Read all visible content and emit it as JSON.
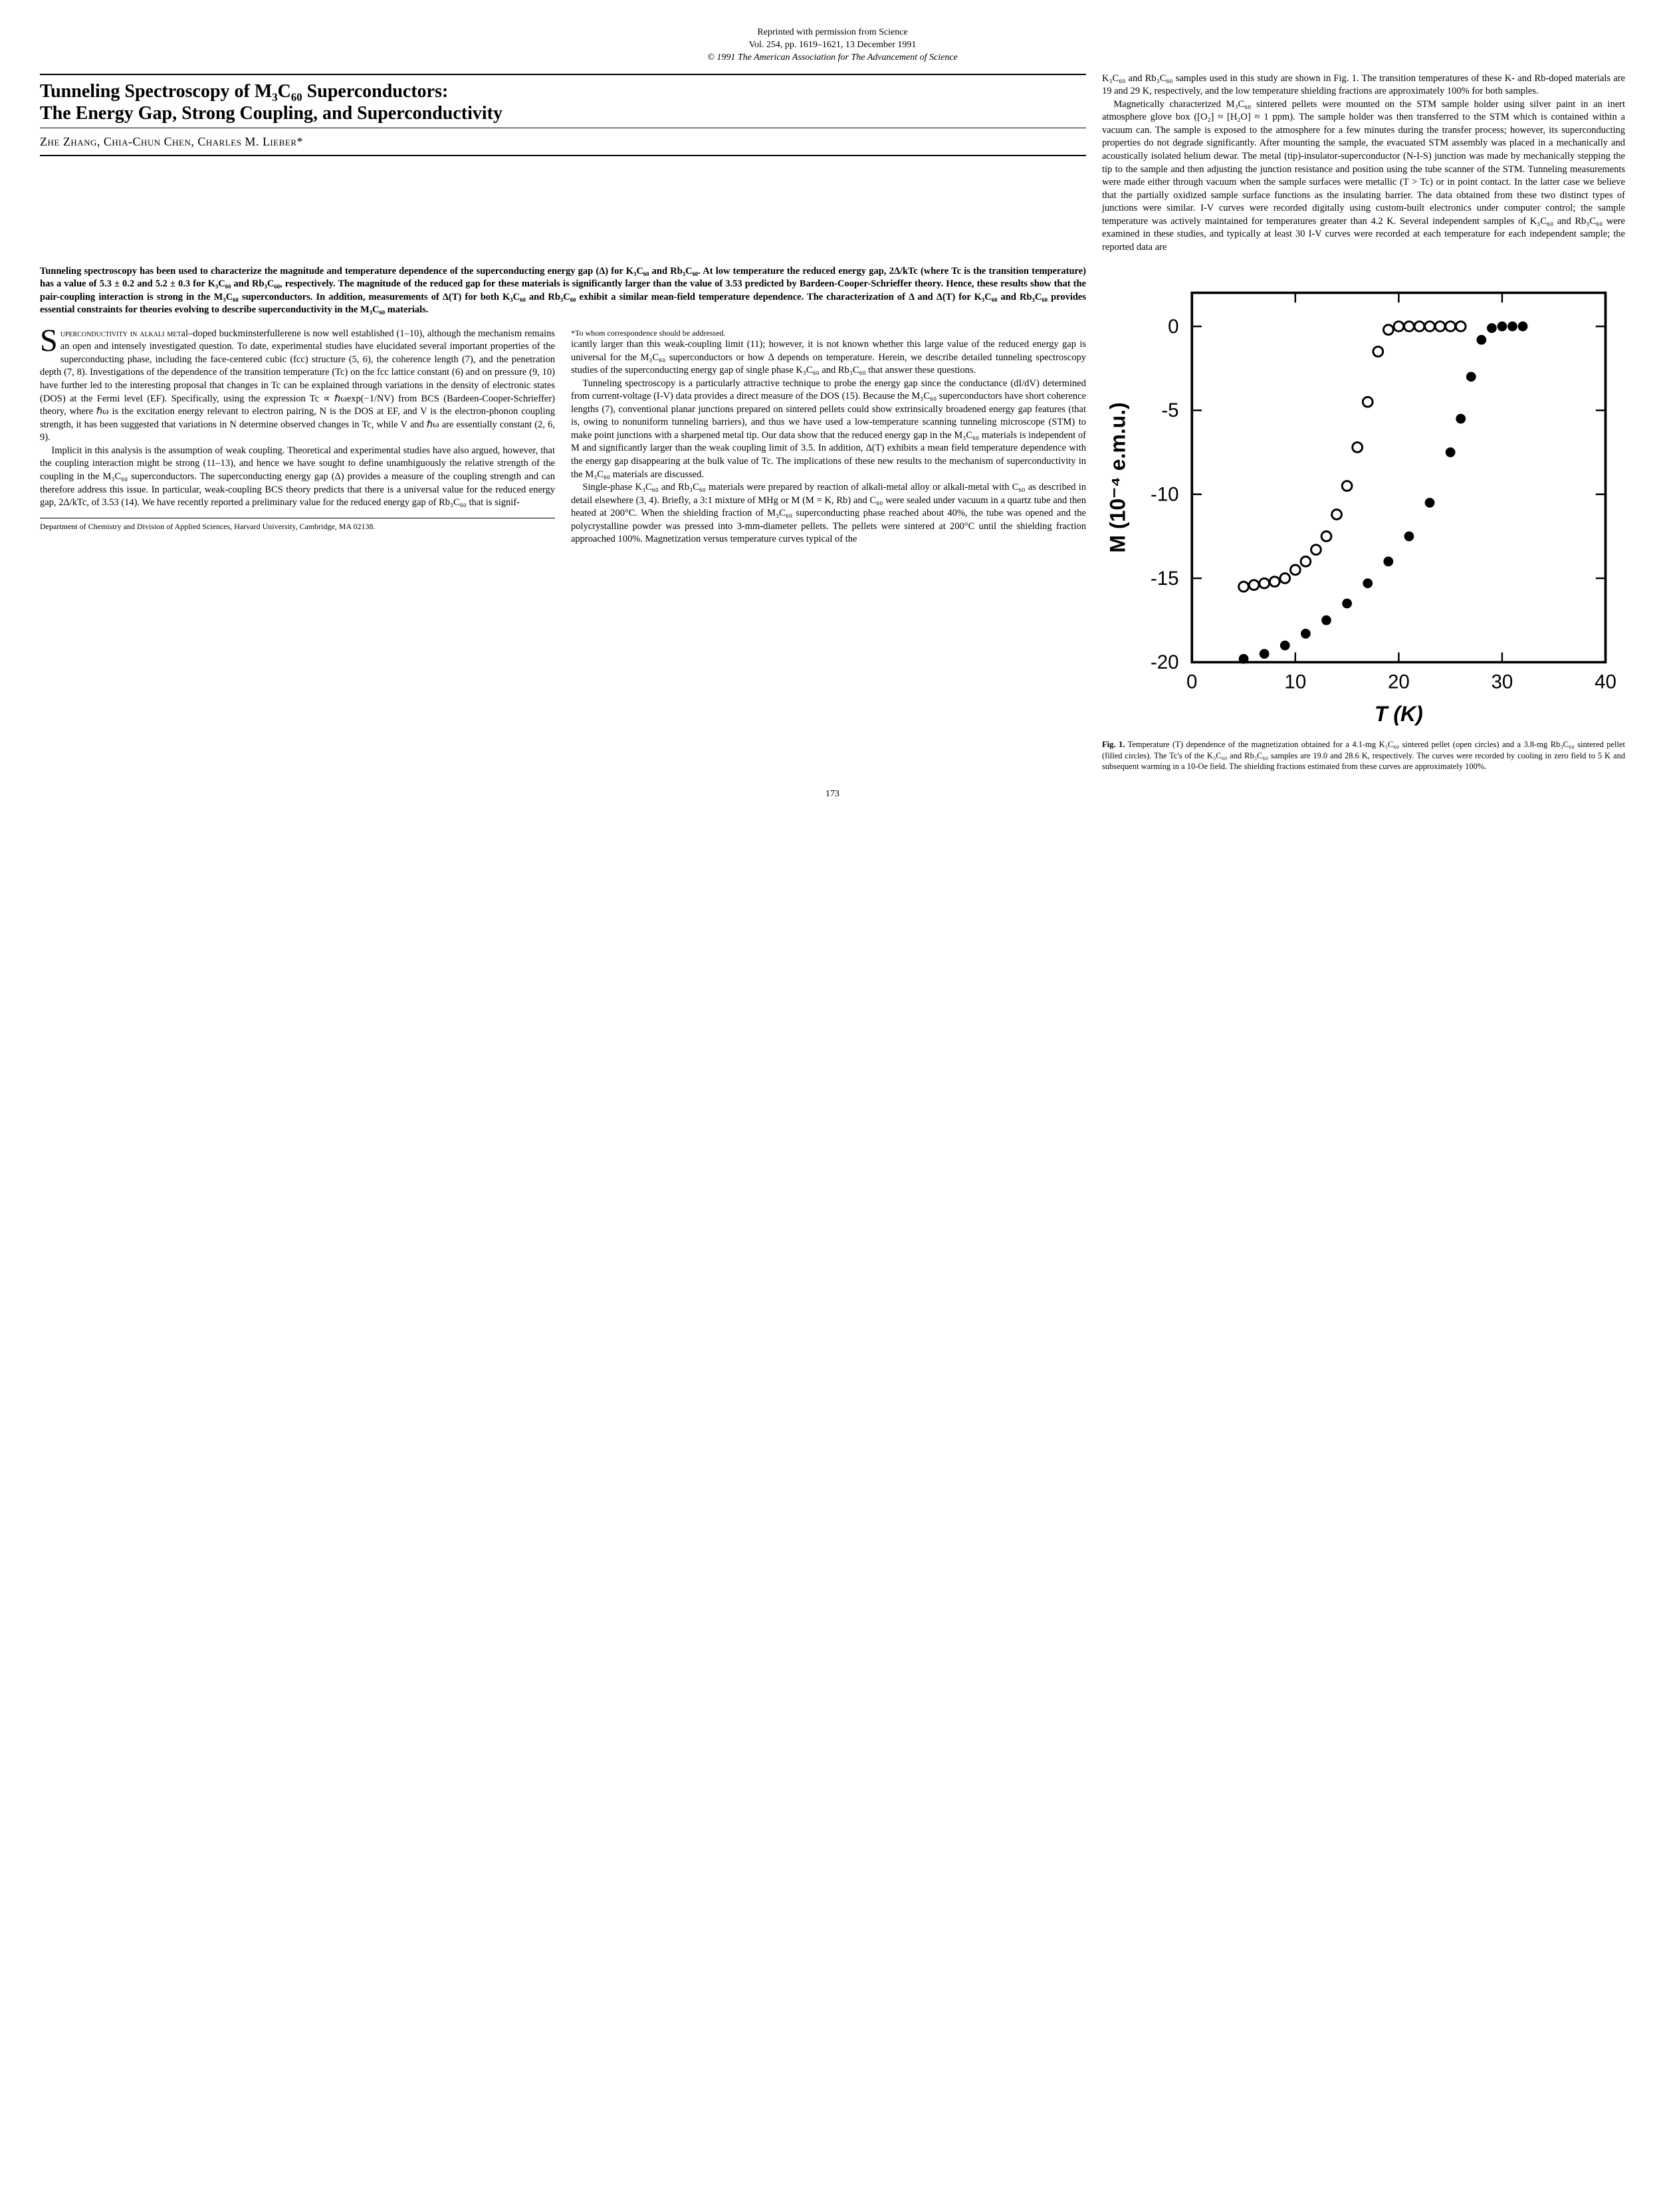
{
  "reprint": {
    "line1": "Reprinted with permission from Science",
    "line2": "Vol. 254, pp. 1619–1621, 13 December 1991",
    "copyright": "© 1991 The American Association for The Advancement of Science"
  },
  "title_line1": "Tunneling Spectroscopy of M₃C₆₀ Superconductors:",
  "title_line2": "The Energy Gap, Strong Coupling, and Superconductivity",
  "authors": "Zhe Zhang, Chia-Chun Chen, Charles M. Lieber*",
  "abstract": "Tunneling spectroscopy has been used to characterize the magnitude and temperature dependence of the superconducting energy gap (Δ) for K₃C₆₀ and Rb₃C₆₀. At low temperature the reduced energy gap, 2Δ/kTc (where Tc is the transition temperature) has a value of 5.3 ± 0.2 and 5.2 ± 0.3 for K₃C₆₀ and Rb₃C₆₀, respectively. The magnitude of the reduced gap for these materials is significantly larger than the value of 3.53 predicted by Bardeen-Cooper-Schrieffer theory. Hence, these results show that the pair-coupling interaction is strong in the M₃C₆₀ superconductors. In addition, measurements of Δ(T) for both K₃C₆₀ and Rb₃C₆₀ exhibit a similar mean-field temperature dependence. The characterization of Δ and Δ(T) for K₃C₆₀ and Rb₃C₆₀ provides essential constraints for theories evolving to describe superconductivity in the M₃C₆₀ materials.",
  "body": {
    "p1_lead": "Superconductivity in alkali met",
    "p1": "al–doped buckminsterfullerene is now well established (1–10), although the mechanism remains an open and intensely investigated question. To date, experimental studies have elucidated several important properties of the superconducting phase, including the face-centered cubic (fcc) structure (5, 6), the coherence length (7), and the penetration depth (7, 8). Investigations of the dependence of the transition temperature (Tc) on the fcc lattice constant (6) and on pressure (9, 10) have further led to the interesting proposal that changes in Tc can be explained through variations in the density of electronic states (DOS) at the Fermi level (EF). Specifically, using the expression Tc ∝ ℏωexp(−1/NV) from BCS (Bardeen-Cooper-Schrieffer) theory, where ℏω is the excitation energy relevant to electron pairing, N is the DOS at EF, and V is the electron-phonon coupling strength, it has been suggested that variations in N determine observed changes in Tc, while V and ℏω are essentially constant (2, 6, 9).",
    "p2": "Implicit in this analysis is the assumption of weak coupling. Theoretical and experimental studies have also argued, however, that the coupling interaction might be strong (11–13), and hence we have sought to define unambiguously the relative strength of the coupling in the M₃C₆₀ superconductors. The superconducting energy gap (Δ) provides a measure of the coupling strength and can therefore address this issue. In particular, weak-coupling BCS theory predicts that there is a universal value for the reduced energy gap, 2Δ/kTc, of 3.53 (14). We have recently reported a preliminary value for the reduced energy gap of Rb₃C₆₀ that is signif-",
    "p3": "icantly larger than this weak-coupling limit (11); however, it is not known whether this large value of the reduced energy gap is universal for the M₃C₆₀ superconductors or how Δ depends on temperature. Herein, we describe detailed tunneling spectroscopy studies of the superconducting energy gap of single phase K₃C₆₀ and Rb₃C₆₀ that answer these questions.",
    "p4": "Tunneling spectroscopy is a particularly attractive technique to probe the energy gap since the conductance (dI/dV) determined from current-voltage (I-V) data provides a direct measure of the DOS (15). Because the M₃C₆₀ superconductors have short coherence lengths (7), conventional planar junctions prepared on sintered pellets could show extrinsically broadened energy gap features (that is, owing to nonuniform tunneling barriers), and thus we have used a low-temperature scanning tunneling microscope (STM) to make point junctions with a sharpened metal tip. Our data show that the reduced energy gap in the M₃C₆₀ materials is independent of M and significantly larger than the weak coupling limit of 3.5. In addition, Δ(T) exhibits a mean field temperature dependence with the energy gap disappearing at the bulk value of Tc. The implications of these new results to the mechanism of superconductivity in the M₃C₆₀ materials are discussed.",
    "p5": "Single-phase K₃C₆₀ and Rb₃C₆₀ materials were prepared by reaction of alkali-metal alloy or alkali-metal with C₆₀ as described in detail elsewhere (3, 4). Briefly, a 3:1 mixture of MHg or M (M = K, Rb) and C₆₀ were sealed under vacuum in a quartz tube and then heated at 200°C. When the shielding fraction of M₃C₆₀ superconducting phase reached about 40%, the tube was opened and the polycrystalline powder was pressed into 3-mm-diameter pellets. The pellets were sintered at 200°C until the shielding fraction approached 100%. Magnetization versus temperature curves typical of the",
    "p6": "K₃C₆₀ and Rb₃C₆₀ samples used in this study are shown in Fig. 1. The transition temperatures of these K- and Rb-doped materials are 19 and 29 K, respectively, and the low temperature shielding fractions are approximately 100% for both samples.",
    "p7": "Magnetically characterized M₃C₆₀ sintered pellets were mounted on the STM sample holder using silver paint in an inert atmosphere glove box ([O₂] ≈ [H₂O] ≈ 1 ppm). The sample holder was then transferred to the STM which is contained within a vacuum can. The sample is exposed to the atmosphere for a few minutes during the transfer process; however, its superconducting properties do not degrade significantly. After mounting the sample, the evacuated STM assembly was placed in a mechanically and acoustically isolated helium dewar. The metal (tip)-insulator-superconductor (N-I-S) junction was made by mechanically stepping the tip to the sample and then adjusting the junction resistance and position using the tube scanner of the STM. Tunneling measurements were made either through vacuum when the sample surfaces were metallic (T > Tc) or in point contact. In the latter case we believe that the partially oxidized sample surface functions as the insulating barrier. The data obtained from these two distinct types of junctions were similar. I-V curves were recorded digitally using custom-built electronics under computer control; the sample temperature was actively maintained for temperatures greater than 4.2 K. Several independent samples of K₃C₆₀ and Rb₃C₆₀ were examined in these studies, and typically at least 30 I-V curves were recorded at each temperature for each independent sample; the reported data are"
  },
  "affiliation": "Department of Chemistry and Division of Applied Sciences, Harvard University, Cambridge, MA 02138.",
  "footnote": "*To whom correspondence should be addressed.",
  "figure1": {
    "type": "scatter",
    "xlabel": "T (K)",
    "ylabel": "M (10⁻⁴ e.m.u.)",
    "xlim": [
      0,
      40
    ],
    "ylim": [
      -20,
      2
    ],
    "xticks": [
      0,
      10,
      20,
      30,
      40
    ],
    "yticks": [
      -20,
      -15,
      -10,
      -5,
      0
    ],
    "series": [
      {
        "name": "K3C60",
        "marker": "open-circle",
        "color": "#000000",
        "points": [
          [
            5,
            -15.5
          ],
          [
            6,
            -15.4
          ],
          [
            7,
            -15.3
          ],
          [
            8,
            -15.2
          ],
          [
            9,
            -15.0
          ],
          [
            10,
            -14.5
          ],
          [
            11,
            -14.0
          ],
          [
            12,
            -13.3
          ],
          [
            13,
            -12.5
          ],
          [
            14,
            -11.2
          ],
          [
            15,
            -9.5
          ],
          [
            16,
            -7.2
          ],
          [
            17,
            -4.5
          ],
          [
            18,
            -1.5
          ],
          [
            19,
            -0.2
          ],
          [
            20,
            0
          ],
          [
            21,
            0
          ],
          [
            22,
            0
          ],
          [
            23,
            0
          ],
          [
            24,
            0
          ],
          [
            25,
            0
          ],
          [
            26,
            0
          ]
        ]
      },
      {
        "name": "Rb3C60",
        "marker": "filled-circle",
        "color": "#000000",
        "points": [
          [
            5,
            -19.8
          ],
          [
            7,
            -19.5
          ],
          [
            9,
            -19.0
          ],
          [
            11,
            -18.3
          ],
          [
            13,
            -17.5
          ],
          [
            15,
            -16.5
          ],
          [
            17,
            -15.3
          ],
          [
            19,
            -14.0
          ],
          [
            21,
            -12.5
          ],
          [
            23,
            -10.5
          ],
          [
            25,
            -7.5
          ],
          [
            26,
            -5.5
          ],
          [
            27,
            -3.0
          ],
          [
            28,
            -0.8
          ],
          [
            29,
            -0.1
          ],
          [
            30,
            0
          ],
          [
            31,
            0
          ],
          [
            32,
            0
          ]
        ]
      }
    ],
    "caption_label": "Fig. 1.",
    "caption": "Temperature (T) dependence of the magnetization obtained for a 4.1-mg K₃C₆₀ sintered pellet (open circles) and a 3.8-mg Rb₃C₆₀ sintered pellet (filled circles). The Tc's of the K₃C₆₀ and Rb₃C₆₀ samples are 19.0 and 28.6 K, respectively. The curves were recorded by cooling in zero field to 5 K and subsequent warming in a 10-Oe field. The shielding fractions estimated from these curves are approximately 100%."
  },
  "page_number": "173"
}
